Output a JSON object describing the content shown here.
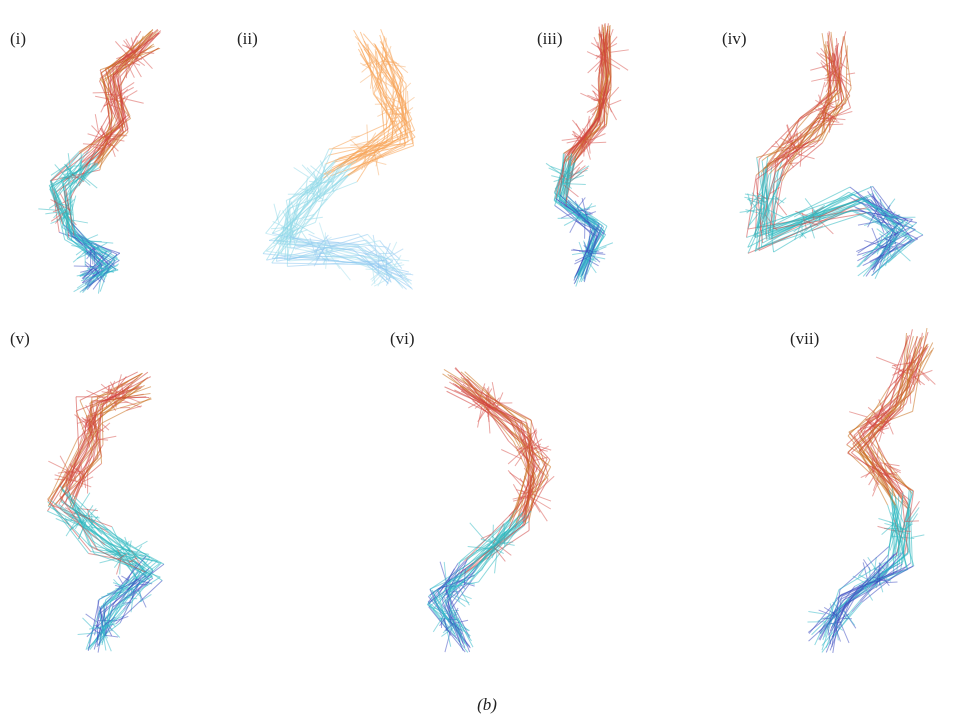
{
  "panels": [
    {
      "label": "(i)"
    },
    {
      "label": "(ii)"
    },
    {
      "label": "(iii)"
    },
    {
      "label": "(iv)"
    },
    {
      "label": "(v)"
    },
    {
      "label": "(vi)"
    },
    {
      "label": "(vii)"
    }
  ],
  "caption": "(b)"
}
